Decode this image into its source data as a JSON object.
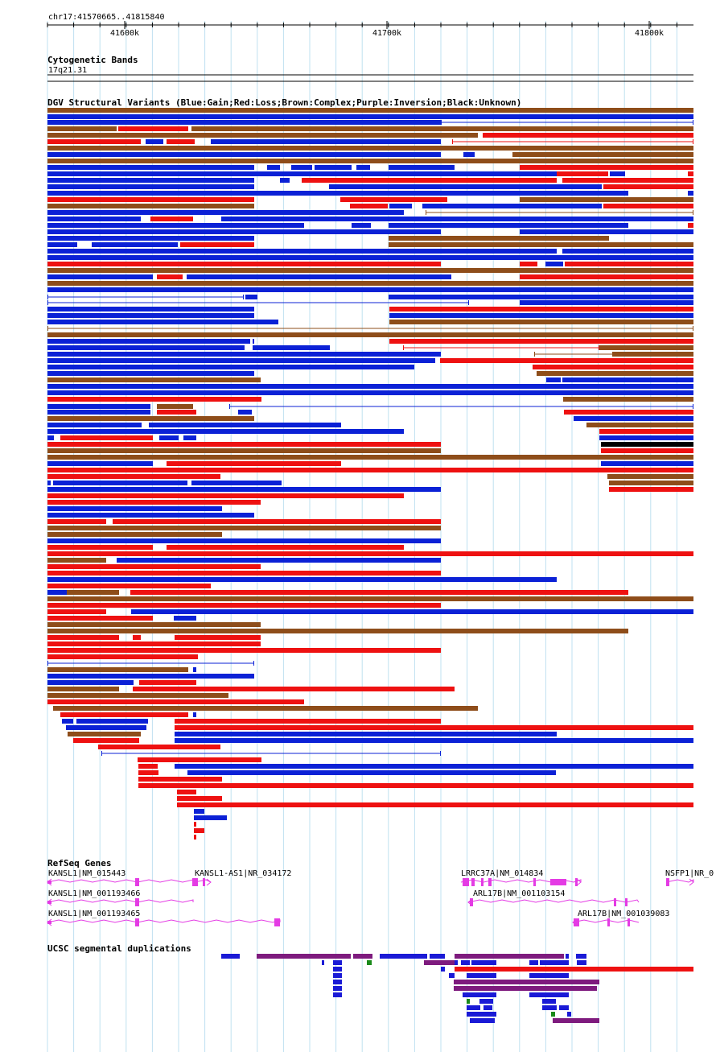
{
  "landmark": "chr17:41570665..41815840",
  "ruler": {
    "ticks": [
      {
        "pos": 41600000,
        "label": "41600k"
      },
      {
        "pos": 41700000,
        "label": "41700k"
      },
      {
        "pos": 41800000,
        "label": "41800k"
      }
    ]
  },
  "tracks": {
    "cytoband": {
      "title": "Cytogenetic Bands",
      "band_label": "17q21.31"
    },
    "dgv": {
      "title": "DGV Structural Variants (Blue:Gain;Red:Loss;Brown:Complex;Purple:Inversion;Black:Unknown)",
      "colors": {
        "B": "#0b21d6",
        "R": "#ee1111",
        "N": "#8e4d1a",
        "K": "#000000"
      }
    },
    "refseq": {
      "title": "RefSeq Genes",
      "genes": [
        {
          "label": "KANSL1|NM_015443"
        },
        {
          "label": "KANSL1-AS1|NR_034172"
        },
        {
          "label": "LRRC37A|NM_014834"
        },
        {
          "label": "NSFP1|NR_0"
        },
        {
          "label": "KANSL1|NM_001193466"
        },
        {
          "label": "ARL17B|NM_001103154"
        },
        {
          "label": "KANSL1|NM_001193465"
        },
        {
          "label": "ARL17B|NM_001039083"
        }
      ]
    },
    "segdups": {
      "title": "UCSC segmental duplications"
    }
  }
}
